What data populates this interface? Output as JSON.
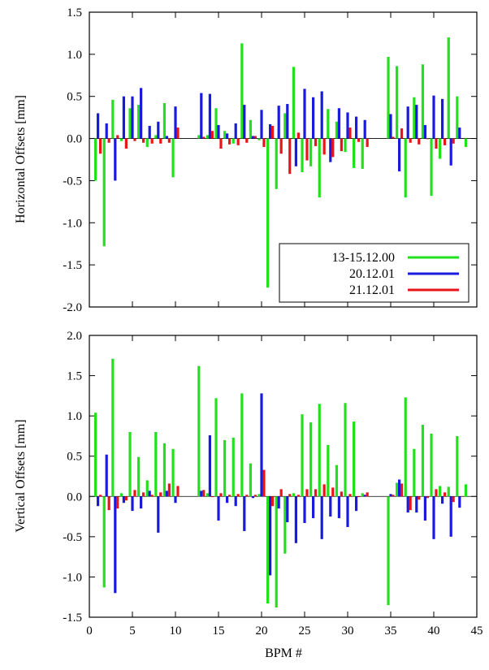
{
  "chart_data": [
    {
      "type": "bar",
      "ylabel": "Horizontal Offsets [mm]",
      "xlabel": "",
      "xlim": [
        0,
        45
      ],
      "ylim": [
        -2.0,
        1.5
      ],
      "yticks": [
        "-2.0",
        "-1.5",
        "-1.0",
        "-0.5",
        "0.0",
        "0.5",
        "1.0",
        "1.5"
      ],
      "legend": {
        "position": "bottom-right",
        "entries": [
          {
            "name": "13-15.12.00",
            "color": "#22e01c"
          },
          {
            "name": "20.12.01",
            "color": "#1a1adc"
          },
          {
            "name": "21.12.01",
            "color": "#e8141a"
          }
        ]
      },
      "series": [
        {
          "name": "13-15.12.00",
          "color": "#22e01c",
          "offset": -0.28,
          "x": [
            1,
            2,
            3,
            4,
            5,
            6,
            7,
            8,
            9,
            10,
            13,
            14,
            15,
            16,
            17,
            18,
            19,
            20,
            21,
            22,
            23,
            24,
            25,
            26,
            27,
            28,
            29,
            30,
            31,
            32,
            35,
            36,
            37,
            38,
            39,
            40,
            41,
            42,
            43,
            44
          ],
          "values": [
            -0.5,
            -1.28,
            0.46,
            -0.03,
            0.36,
            0.4,
            -0.1,
            0.04,
            0.42,
            -0.46,
            0.04,
            0.04,
            0.36,
            0.09,
            -0.06,
            1.13,
            0.22,
            -0.02,
            -1.77,
            -0.6,
            0.3,
            0.85,
            -0.4,
            -0.33,
            -0.7,
            0.35,
            0.2,
            -0.16,
            -0.35,
            -0.36,
            0.97,
            0.86,
            -0.7,
            0.49,
            0.88,
            -0.68,
            -0.24,
            1.2,
            0.5,
            -0.1
          ]
        },
        {
          "name": "20.12.01",
          "color": "#1a1adc",
          "offset": 0.0,
          "x": [
            1,
            2,
            3,
            4,
            5,
            6,
            7,
            8,
            9,
            10,
            13,
            14,
            15,
            16,
            17,
            18,
            19,
            20,
            21,
            22,
            23,
            24,
            25,
            26,
            27,
            28,
            29,
            30,
            31,
            32,
            35,
            36,
            37,
            38,
            39,
            40,
            41,
            42,
            43
          ],
          "values": [
            0.3,
            0.18,
            -0.5,
            0.5,
            0.5,
            0.6,
            0.15,
            0.2,
            0.03,
            0.38,
            0.54,
            0.53,
            0.16,
            0.06,
            0.18,
            0.4,
            0.03,
            0.34,
            0.17,
            0.39,
            0.41,
            -0.33,
            0.59,
            0.49,
            0.56,
            -0.28,
            0.36,
            0.31,
            0.26,
            0.22,
            0.29,
            -0.39,
            0.38,
            0.4,
            0.16,
            0.51,
            0.47,
            -0.32,
            0.13
          ]
        },
        {
          "name": "21.12.01",
          "color": "#e8141a",
          "offset": 0.28,
          "x": [
            1,
            2,
            3,
            4,
            5,
            6,
            7,
            8,
            9,
            10,
            13,
            14,
            15,
            16,
            17,
            18,
            19,
            20,
            21,
            22,
            23,
            24,
            25,
            26,
            27,
            28,
            29,
            30,
            31,
            32,
            35,
            36,
            37,
            38,
            39,
            40,
            41,
            42
          ],
          "values": [
            -0.18,
            -0.05,
            0.04,
            -0.12,
            -0.03,
            -0.05,
            -0.06,
            -0.06,
            -0.05,
            0.13,
            0.02,
            0.09,
            -0.12,
            -0.07,
            -0.08,
            -0.05,
            0.03,
            -0.1,
            0.15,
            -0.18,
            -0.42,
            0.07,
            -0.26,
            -0.09,
            -0.19,
            -0.22,
            -0.15,
            0.13,
            -0.04,
            -0.1,
            0.02,
            0.12,
            -0.05,
            -0.07,
            0.0,
            -0.12,
            -0.08,
            -0.06
          ]
        }
      ]
    },
    {
      "type": "bar",
      "ylabel": "Vertical Offsets [mm]",
      "xlabel": "BPM #",
      "xlim": [
        0,
        45
      ],
      "ylim": [
        -1.5,
        2.0
      ],
      "xticks": [
        "0",
        "5",
        "10",
        "15",
        "20",
        "25",
        "30",
        "35",
        "40",
        "45"
      ],
      "yticks": [
        "-1.5",
        "-1.0",
        "-0.5",
        "0.0",
        "0.5",
        "1.0",
        "1.5",
        "2.0"
      ],
      "series": [
        {
          "name": "13-15.12.00",
          "color": "#22e01c",
          "offset": -0.28,
          "x": [
            1,
            2,
            3,
            4,
            5,
            6,
            7,
            8,
            9,
            10,
            13,
            14,
            15,
            16,
            17,
            18,
            19,
            20,
            21,
            22,
            23,
            24,
            25,
            26,
            27,
            28,
            29,
            30,
            31,
            32,
            35,
            36,
            37,
            38,
            39,
            40,
            41,
            42,
            43,
            44
          ],
          "values": [
            1.04,
            -1.13,
            1.71,
            0.04,
            0.8,
            0.49,
            0.2,
            0.8,
            0.66,
            0.59,
            1.62,
            0.04,
            1.22,
            0.7,
            0.73,
            1.28,
            0.41,
            0.03,
            -1.33,
            -1.38,
            -0.71,
            0.04,
            1.02,
            0.92,
            1.15,
            0.64,
            0.39,
            1.16,
            0.93,
            0.04,
            -1.35,
            0.17,
            1.23,
            0.59,
            0.89,
            0.78,
            0.13,
            0.12,
            0.75,
            0.15
          ]
        },
        {
          "name": "20.12.01",
          "color": "#1a1adc",
          "offset": 0.0,
          "x": [
            1,
            2,
            3,
            4,
            5,
            6,
            7,
            8,
            9,
            10,
            13,
            14,
            15,
            16,
            17,
            18,
            19,
            20,
            21,
            22,
            23,
            24,
            25,
            26,
            27,
            28,
            29,
            30,
            31,
            32,
            35,
            36,
            37,
            38,
            39,
            40,
            41,
            42,
            43
          ],
          "values": [
            -0.12,
            0.52,
            -1.2,
            -0.08,
            -0.18,
            -0.15,
            0.07,
            -0.45,
            0.07,
            -0.08,
            0.07,
            0.76,
            -0.3,
            -0.08,
            -0.12,
            -0.43,
            -0.02,
            1.28,
            -0.98,
            -0.15,
            -0.32,
            -0.58,
            -0.33,
            -0.27,
            -0.53,
            -0.25,
            -0.27,
            -0.38,
            -0.18,
            0.02,
            0.03,
            0.21,
            -0.2,
            -0.2,
            -0.3,
            -0.53,
            -0.09,
            -0.5,
            -0.14
          ]
        },
        {
          "name": "21.12.01",
          "color": "#e8141a",
          "offset": 0.28,
          "x": [
            1,
            2,
            3,
            4,
            5,
            6,
            7,
            8,
            9,
            10,
            13,
            14,
            15,
            16,
            17,
            18,
            19,
            20,
            21,
            22,
            23,
            24,
            25,
            26,
            27,
            28,
            29,
            30,
            31,
            32,
            35,
            36,
            37,
            38,
            39,
            40,
            41,
            42
          ],
          "values": [
            0.02,
            -0.17,
            -0.15,
            -0.05,
            0.08,
            0.05,
            0.02,
            0.05,
            0.16,
            0.13,
            0.08,
            0.0,
            0.04,
            0.02,
            0.03,
            0.02,
            0.02,
            0.33,
            -0.12,
            0.09,
            0.03,
            0.02,
            0.09,
            0.09,
            0.15,
            0.11,
            0.06,
            0.03,
            0.0,
            0.05,
            0.02,
            0.16,
            -0.17,
            -0.04,
            -0.02,
            0.09,
            0.05,
            -0.07
          ]
        }
      ]
    }
  ]
}
